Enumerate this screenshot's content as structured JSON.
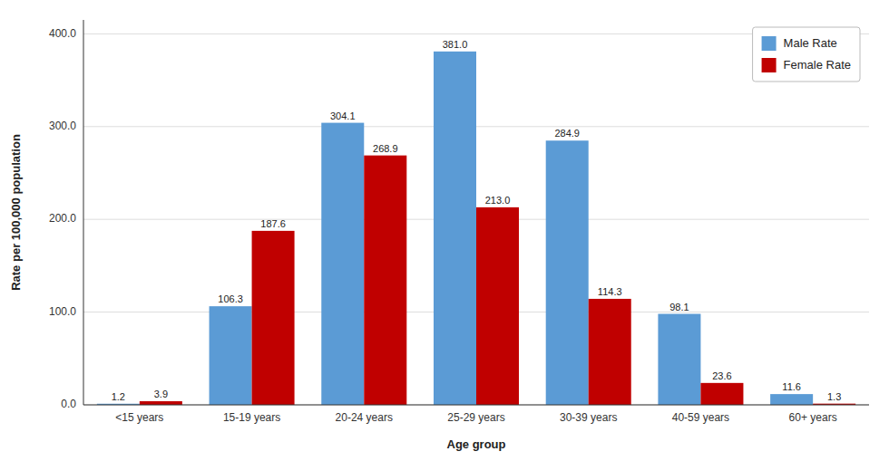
{
  "chart_data": {
    "type": "bar",
    "categories": [
      "<15 years",
      "15-19 years",
      "20-24 years",
      "25-29 years",
      "30-39 years",
      "40-59 years",
      "60+ years"
    ],
    "series": [
      {
        "name": "Male Rate",
        "color": "#5B9BD5",
        "values": [
          1.2,
          106.3,
          304.1,
          381.0,
          284.9,
          98.1,
          11.6
        ],
        "value_labels": [
          "1.2",
          "106.3",
          "304.1",
          "381.0",
          "284.9",
          "98.1",
          "11.6"
        ]
      },
      {
        "name": "Female Rate",
        "color": "#C00000",
        "values": [
          3.9,
          187.6,
          268.9,
          213.0,
          114.3,
          23.6,
          1.3
        ],
        "value_labels": [
          "3.9",
          "187.6",
          "268.9",
          "213.0",
          "114.3",
          "23.6",
          "1.3"
        ]
      }
    ],
    "xlabel": "Age group",
    "ylabel": "Rate per 100,000 population",
    "ylim": [
      0,
      415
    ],
    "yticks": [
      {
        "value": 0,
        "label": "0.0"
      },
      {
        "value": 100,
        "label": "100.0"
      },
      {
        "value": 200,
        "label": "200.0"
      },
      {
        "value": 300,
        "label": "300.0"
      },
      {
        "value": 400,
        "label": "400.0"
      }
    ],
    "grid": true,
    "legend": "upper right",
    "data_labels": true
  }
}
